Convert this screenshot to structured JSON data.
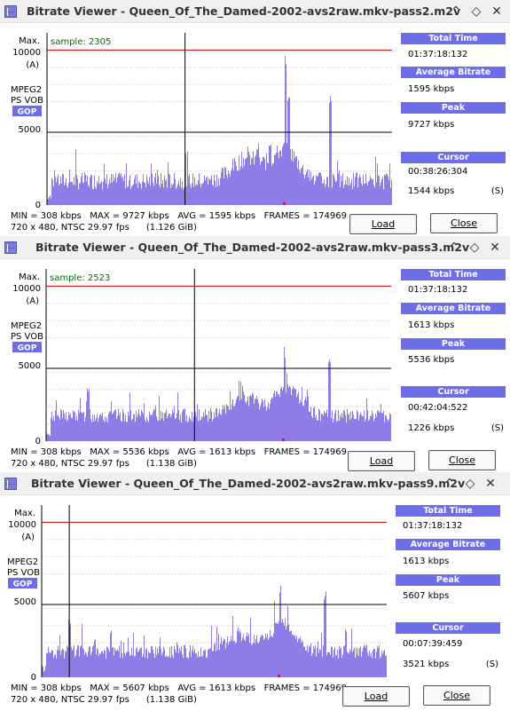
{
  "labels": {
    "max": "Max.",
    "ymax": "10000",
    "unit": "(A)",
    "mpeg": "MPEG2",
    "psvob": "PS VOB",
    "gop": "GOP",
    "ymid": "5000",
    "ymin": "0",
    "total_time": "Total Time",
    "avg_bitrate": "Average Bitrate",
    "peak": "Peak",
    "cursor": "Cursor",
    "cursor_suffix": "(S)",
    "load": "Load",
    "close": "Close",
    "minimize": "⌃",
    "restore": "◇",
    "close_x": "✕"
  },
  "colors": {
    "bars": "#8f7ce6",
    "redline": "#cc0000",
    "header": "#6d6de8",
    "sample_text": "#007000"
  },
  "windows": [
    {
      "title": "Bitrate Viewer - Queen_Of_The_Damed-2002-avs2raw.mkv-pass2.m2v",
      "sample": "sample: 2305",
      "total_time": "01:37:18:132",
      "avg_bitrate": "1595 kbps",
      "peak": "9727 kbps",
      "cursor_time": "00:38:26:304",
      "cursor_value": "1544 kbps",
      "stats": "MIN = 308 kbps   MAX = 9727 kbps   AVG = 1595 kbps   FRAMES = 174969",
      "format": "720 x 480, NTSC 29.97 fps      (1.126 GiB)",
      "chart_data": {
        "type": "bar",
        "y_range": [
          0,
          10000
        ],
        "red_line": 9000,
        "cursor_fraction": 0.4,
        "seed": 7,
        "base": 1300,
        "noise": 1000,
        "spikes": [
          [
            0.61,
            3600
          ],
          [
            0.645,
            3900
          ],
          [
            0.69,
            9000
          ],
          [
            0.7,
            7000
          ],
          [
            0.82,
            6500
          ],
          [
            0.15,
            1400
          ],
          [
            0.47,
            1700
          ]
        ],
        "bumps": [
          [
            0.58,
            0.06,
            1300
          ],
          [
            0.69,
            0.05,
            1800
          ]
        ]
      }
    },
    {
      "title": "Bitrate Viewer - Queen_Of_The_Damed-2002-avs2raw.mkv-pass3.m2v",
      "sample": "sample: 2523",
      "total_time": "01:37:18:132",
      "avg_bitrate": "1613 kbps",
      "peak": "5536 kbps",
      "cursor_time": "00:42:04:522",
      "cursor_value": "1226 kbps",
      "stats": "MIN = 308 kbps   MAX = 5536 kbps   AVG = 1613 kbps   FRAMES = 174969",
      "format": "720 x 480, NTSC 29.97 fps      (1.138 GiB)",
      "chart_data": {
        "type": "bar",
        "y_range": [
          0,
          10000
        ],
        "red_line": 9000,
        "cursor_fraction": 0.43,
        "seed": 13,
        "base": 1400,
        "noise": 800,
        "spikes": [
          [
            0.69,
            5500
          ],
          [
            0.82,
            5200
          ],
          [
            0.57,
            2900
          ],
          [
            0.12,
            3100
          ]
        ],
        "bumps": [
          [
            0.58,
            0.06,
            900
          ],
          [
            0.7,
            0.05,
            1600
          ]
        ]
      }
    },
    {
      "title": "Bitrate Viewer - Queen_Of_The_Damed-2002-avs2raw.mkv-pass9.m2v",
      "sample": "",
      "total_time": "01:37:18:132",
      "avg_bitrate": "1613 kbps",
      "peak": "5607 kbps",
      "cursor_time": "00:07:39:459",
      "cursor_value": "3521 kbps",
      "stats": "MIN = 308 kbps   MAX = 5607 kbps   AVG = 1613 kbps   FRAMES = 174969",
      "format": "720 x 480, NTSC 29.97 fps      (1.138 GiB)",
      "chart_data": {
        "type": "bar",
        "y_range": [
          0,
          10000
        ],
        "red_line": 9000,
        "cursor_fraction": 0.08,
        "seed": 29,
        "base": 1400,
        "noise": 800,
        "spikes": [
          [
            0.69,
            5600
          ],
          [
            0.82,
            5300
          ],
          [
            0.08,
            3500
          ],
          [
            0.57,
            3000
          ]
        ],
        "bumps": [
          [
            0.58,
            0.06,
            900
          ],
          [
            0.7,
            0.05,
            1600
          ]
        ]
      }
    }
  ]
}
